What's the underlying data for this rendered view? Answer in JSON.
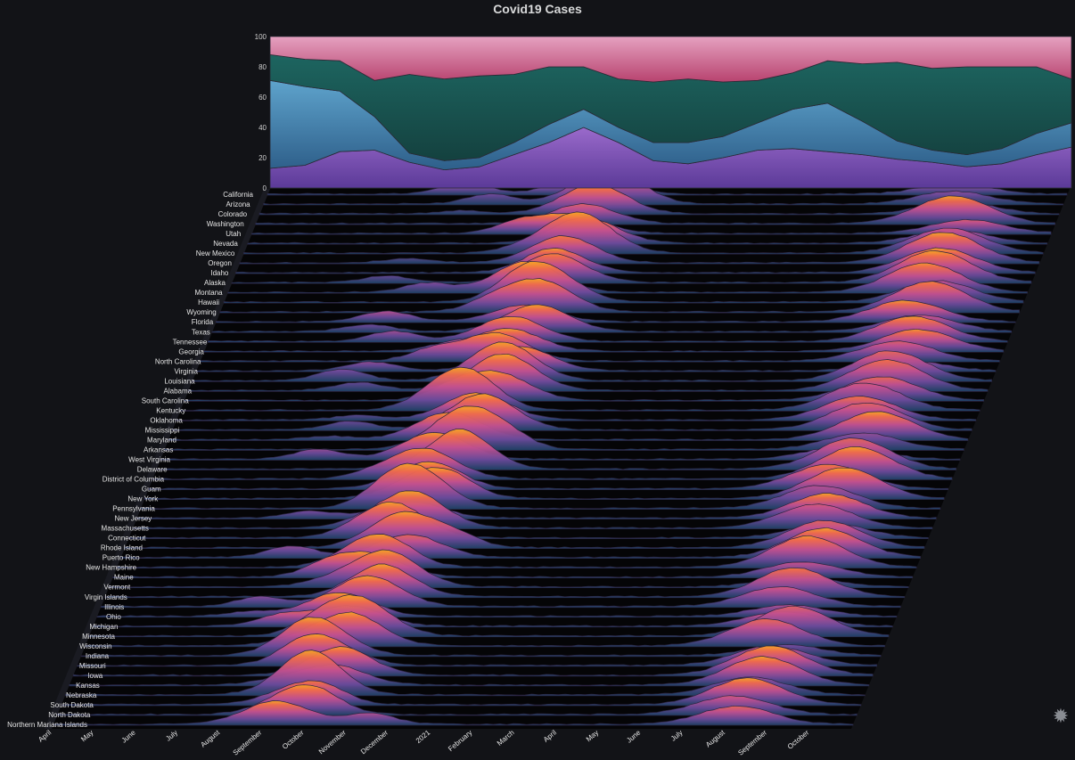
{
  "title": "Covid19 Cases",
  "chart_data": [
    {
      "type": "area",
      "stacked": true,
      "ylim": [
        0,
        100
      ],
      "yticks": [
        0,
        20,
        40,
        60,
        80,
        100
      ],
      "n_points": 24,
      "series": [
        {
          "color": "#7b4fb5",
          "values": [
            13,
            15,
            24,
            25,
            17,
            12,
            14,
            22,
            30,
            40,
            30,
            18,
            16,
            20,
            25,
            26,
            24,
            22,
            19,
            17,
            14,
            16,
            22,
            27
          ]
        },
        {
          "color": "#3e7ea8",
          "values": [
            58,
            52,
            40,
            22,
            6,
            6,
            6,
            8,
            12,
            12,
            10,
            12,
            14,
            14,
            18,
            26,
            32,
            22,
            12,
            8,
            8,
            10,
            14,
            16
          ]
        },
        {
          "color": "#1c5b56",
          "values": [
            17,
            18,
            20,
            24,
            52,
            54,
            54,
            45,
            38,
            28,
            32,
            40,
            42,
            36,
            28,
            24,
            28,
            38,
            52,
            54,
            58,
            54,
            44,
            29
          ]
        },
        {
          "color": "#c84f83",
          "values": [
            12,
            15,
            16,
            29,
            25,
            28,
            26,
            25,
            20,
            20,
            28,
            30,
            28,
            30,
            29,
            24,
            16,
            18,
            17,
            21,
            20,
            20,
            20,
            28
          ]
        }
      ]
    },
    {
      "type": "ridgeline",
      "states": [
        "California",
        "Arizona",
        "Colorado",
        "Washington",
        "Utah",
        "Nevada",
        "New Mexico",
        "Oregon",
        "Idaho",
        "Alaska",
        "Montana",
        "Hawaii",
        "Wyoming",
        "Florida",
        "Texas",
        "Tennessee",
        "Georgia",
        "North Carolina",
        "Virginia",
        "Louisiana",
        "Alabama",
        "South Carolina",
        "Kentucky",
        "Oklahoma",
        "Mississippi",
        "Maryland",
        "Arkansas",
        "West Virginia",
        "Delaware",
        "District of Columbia",
        "Guam",
        "New York",
        "Pennsylvania",
        "New Jersey",
        "Massachusetts",
        "Connecticut",
        "Rhode Island",
        "Puerto Rico",
        "New Hampshire",
        "Maine",
        "Vermont",
        "Virgin Islands",
        "Illinois",
        "Ohio",
        "Michigan",
        "Minnesota",
        "Wisconsin",
        "Indiana",
        "Missouri",
        "Iowa",
        "Kansas",
        "Nebraska",
        "South Dakota",
        "North Dakota",
        "Northern Mariana Islands"
      ],
      "x_labels": [
        "April",
        "May",
        "June",
        "July",
        "August",
        "September",
        "October",
        "November",
        "December",
        "2021",
        "February",
        "March",
        "April",
        "May",
        "June",
        "July",
        "August",
        "September",
        "October"
      ],
      "x_range": [
        0,
        1
      ]
    }
  ]
}
